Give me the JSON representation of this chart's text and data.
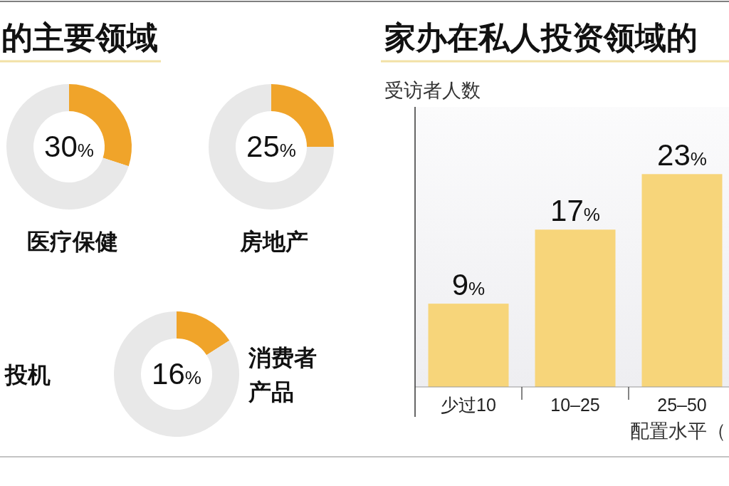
{
  "chart_data": [
    {
      "type": "other",
      "title": "的主要领域",
      "annotations": [
        "投机"
      ]
    },
    {
      "type": "donut",
      "title": "医疗保健",
      "categories": [
        null,
        null
      ],
      "values": [
        30,
        70
      ],
      "colors": [
        "#f0a42a",
        "#e8e8e8"
      ],
      "value_labels": [
        "30%",
        null
      ]
    },
    {
      "type": "donut",
      "title": "房地产",
      "categories": [
        null,
        null
      ],
      "values": [
        25,
        75
      ],
      "colors": [
        "#f0a42a",
        "#e8e8e8"
      ],
      "value_labels": [
        "25%",
        null
      ]
    },
    {
      "type": "donut",
      "title": "消费者产品",
      "categories": [
        null,
        null
      ],
      "values": [
        16,
        84
      ],
      "colors": [
        "#f0a42a",
        "#e8e8e8"
      ],
      "value_labels": [
        "16%",
        null
      ]
    },
    {
      "type": "bar",
      "title": "家办在私人投资领域的",
      "ylabel": "受访者人数",
      "xlabel": "配置水平（",
      "categories": [
        "少过10",
        "10–25",
        "25–50"
      ],
      "values": [
        9,
        17,
        23
      ],
      "color": "#f7d57a",
      "value_labels": [
        "9%",
        "17%",
        "23%"
      ]
    }
  ]
}
